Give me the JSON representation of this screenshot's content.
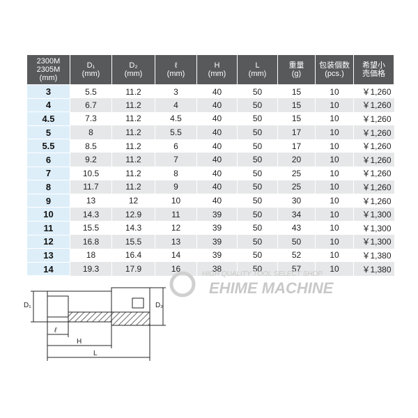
{
  "table": {
    "header": [
      [
        "2300M",
        "2305M",
        "(mm)"
      ],
      [
        "D₁",
        "(mm)"
      ],
      [
        "D₂",
        "(mm)"
      ],
      [
        "ℓ",
        "(mm)"
      ],
      [
        "H",
        "(mm)"
      ],
      [
        "L",
        "(mm)"
      ],
      [
        "重量",
        "(g)"
      ],
      [
        "包装個数",
        "(pcs.)"
      ],
      [
        "希望小",
        "売価格"
      ]
    ],
    "rows": [
      [
        "3",
        "5.5",
        "11.2",
        "3",
        "40",
        "50",
        "15",
        "10",
        "￥1,260"
      ],
      [
        "4",
        "6.7",
        "11.2",
        "4",
        "40",
        "50",
        "15",
        "10",
        "￥1,260"
      ],
      [
        "4.5",
        "7.3",
        "11.2",
        "4.5",
        "40",
        "50",
        "15",
        "10",
        "￥1,260"
      ],
      [
        "5",
        "8",
        "11.2",
        "5.5",
        "40",
        "50",
        "17",
        "10",
        "￥1,260"
      ],
      [
        "5.5",
        "8.5",
        "11.2",
        "6",
        "40",
        "50",
        "17",
        "10",
        "￥1,260"
      ],
      [
        "6",
        "9.2",
        "11.2",
        "7",
        "40",
        "50",
        "20",
        "10",
        "￥1,260"
      ],
      [
        "7",
        "10.5",
        "11.2",
        "8",
        "40",
        "50",
        "25",
        "10",
        "￥1,260"
      ],
      [
        "8",
        "11.7",
        "11.2",
        "9",
        "40",
        "50",
        "25",
        "10",
        "￥1,260"
      ],
      [
        "9",
        "13",
        "12",
        "10",
        "40",
        "50",
        "30",
        "10",
        "￥1,260"
      ],
      [
        "10",
        "14.3",
        "12.9",
        "11",
        "39",
        "50",
        "34",
        "10",
        "￥1,300"
      ],
      [
        "11",
        "15.5",
        "14.3",
        "12",
        "39",
        "50",
        "43",
        "10",
        "￥1,300"
      ],
      [
        "12",
        "16.8",
        "15.5",
        "13",
        "39",
        "50",
        "50",
        "10",
        "￥1,300"
      ],
      [
        "13",
        "18",
        "16.4",
        "14",
        "39",
        "50",
        "52",
        "10",
        "￥1,380"
      ],
      [
        "14",
        "19.3",
        "17.9",
        "16",
        "38",
        "50",
        "57",
        "10",
        "￥1,380"
      ]
    ]
  },
  "diagram": {
    "d1": "D₁",
    "d2": "D₂",
    "l_small": "ℓ",
    "h": "H",
    "l": "L"
  },
  "watermark": {
    "tagline": "HIGH QUALITY TOOL SELECT SHOP",
    "brand": "EHIME MACHINE"
  }
}
